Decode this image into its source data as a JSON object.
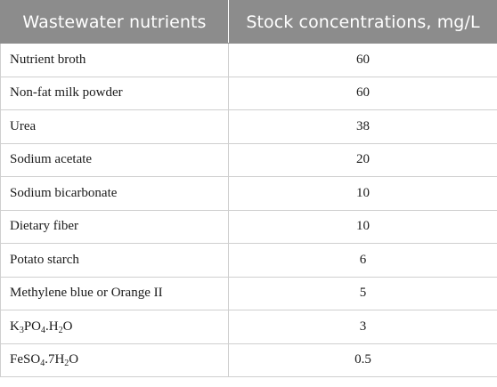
{
  "table": {
    "headers": [
      "Wastewater nutrients",
      "Stock concentrations, mg/L"
    ],
    "rows": [
      {
        "nutrient": "Nutrient broth",
        "concentration": "60"
      },
      {
        "nutrient": "Non-fat milk powder",
        "concentration": "60"
      },
      {
        "nutrient": "Urea",
        "concentration": "38"
      },
      {
        "nutrient": "Sodium acetate",
        "concentration": "20"
      },
      {
        "nutrient": "Sodium bicarbonate",
        "concentration": "10"
      },
      {
        "nutrient": "Dietary fiber",
        "concentration": "10"
      },
      {
        "nutrient": "Potato starch",
        "concentration": "6"
      },
      {
        "nutrient": "Methylene blue or Orange II",
        "concentration": "5"
      },
      {
        "nutrient": "K3PO4.H2O",
        "nutrient_parts": [
          "K",
          "3",
          "PO",
          "4",
          ".H",
          "2",
          "O"
        ],
        "concentration": "3"
      },
      {
        "nutrient": "FeSO4.7H2O",
        "nutrient_parts": [
          "FeSO",
          "4",
          ".7H",
          "2",
          "O"
        ],
        "concentration": "0.5"
      }
    ]
  }
}
